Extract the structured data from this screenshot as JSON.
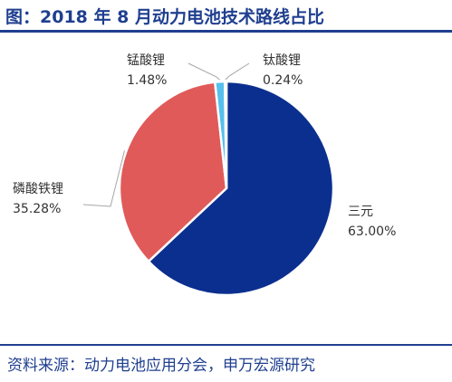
{
  "title": "图：2018 年 8 月动力电池技术路线占比",
  "source": "资料来源：动力电池应用分会，申万宏源研究",
  "chart_data": {
    "type": "pie",
    "slices": [
      {
        "name": "三元",
        "value": 63.0,
        "label": "63.00%",
        "color": "#0b2f8f"
      },
      {
        "name": "磷酸铁锂",
        "value": 35.28,
        "label": "35.28%",
        "color": "#e05a5a"
      },
      {
        "name": "锰酸锂",
        "value": 1.48,
        "label": "1.48%",
        "color": "#56c0ec"
      },
      {
        "name": "钛酸锂",
        "value": 0.24,
        "label": "0.24%",
        "color": "#8a8a8a"
      }
    ]
  }
}
